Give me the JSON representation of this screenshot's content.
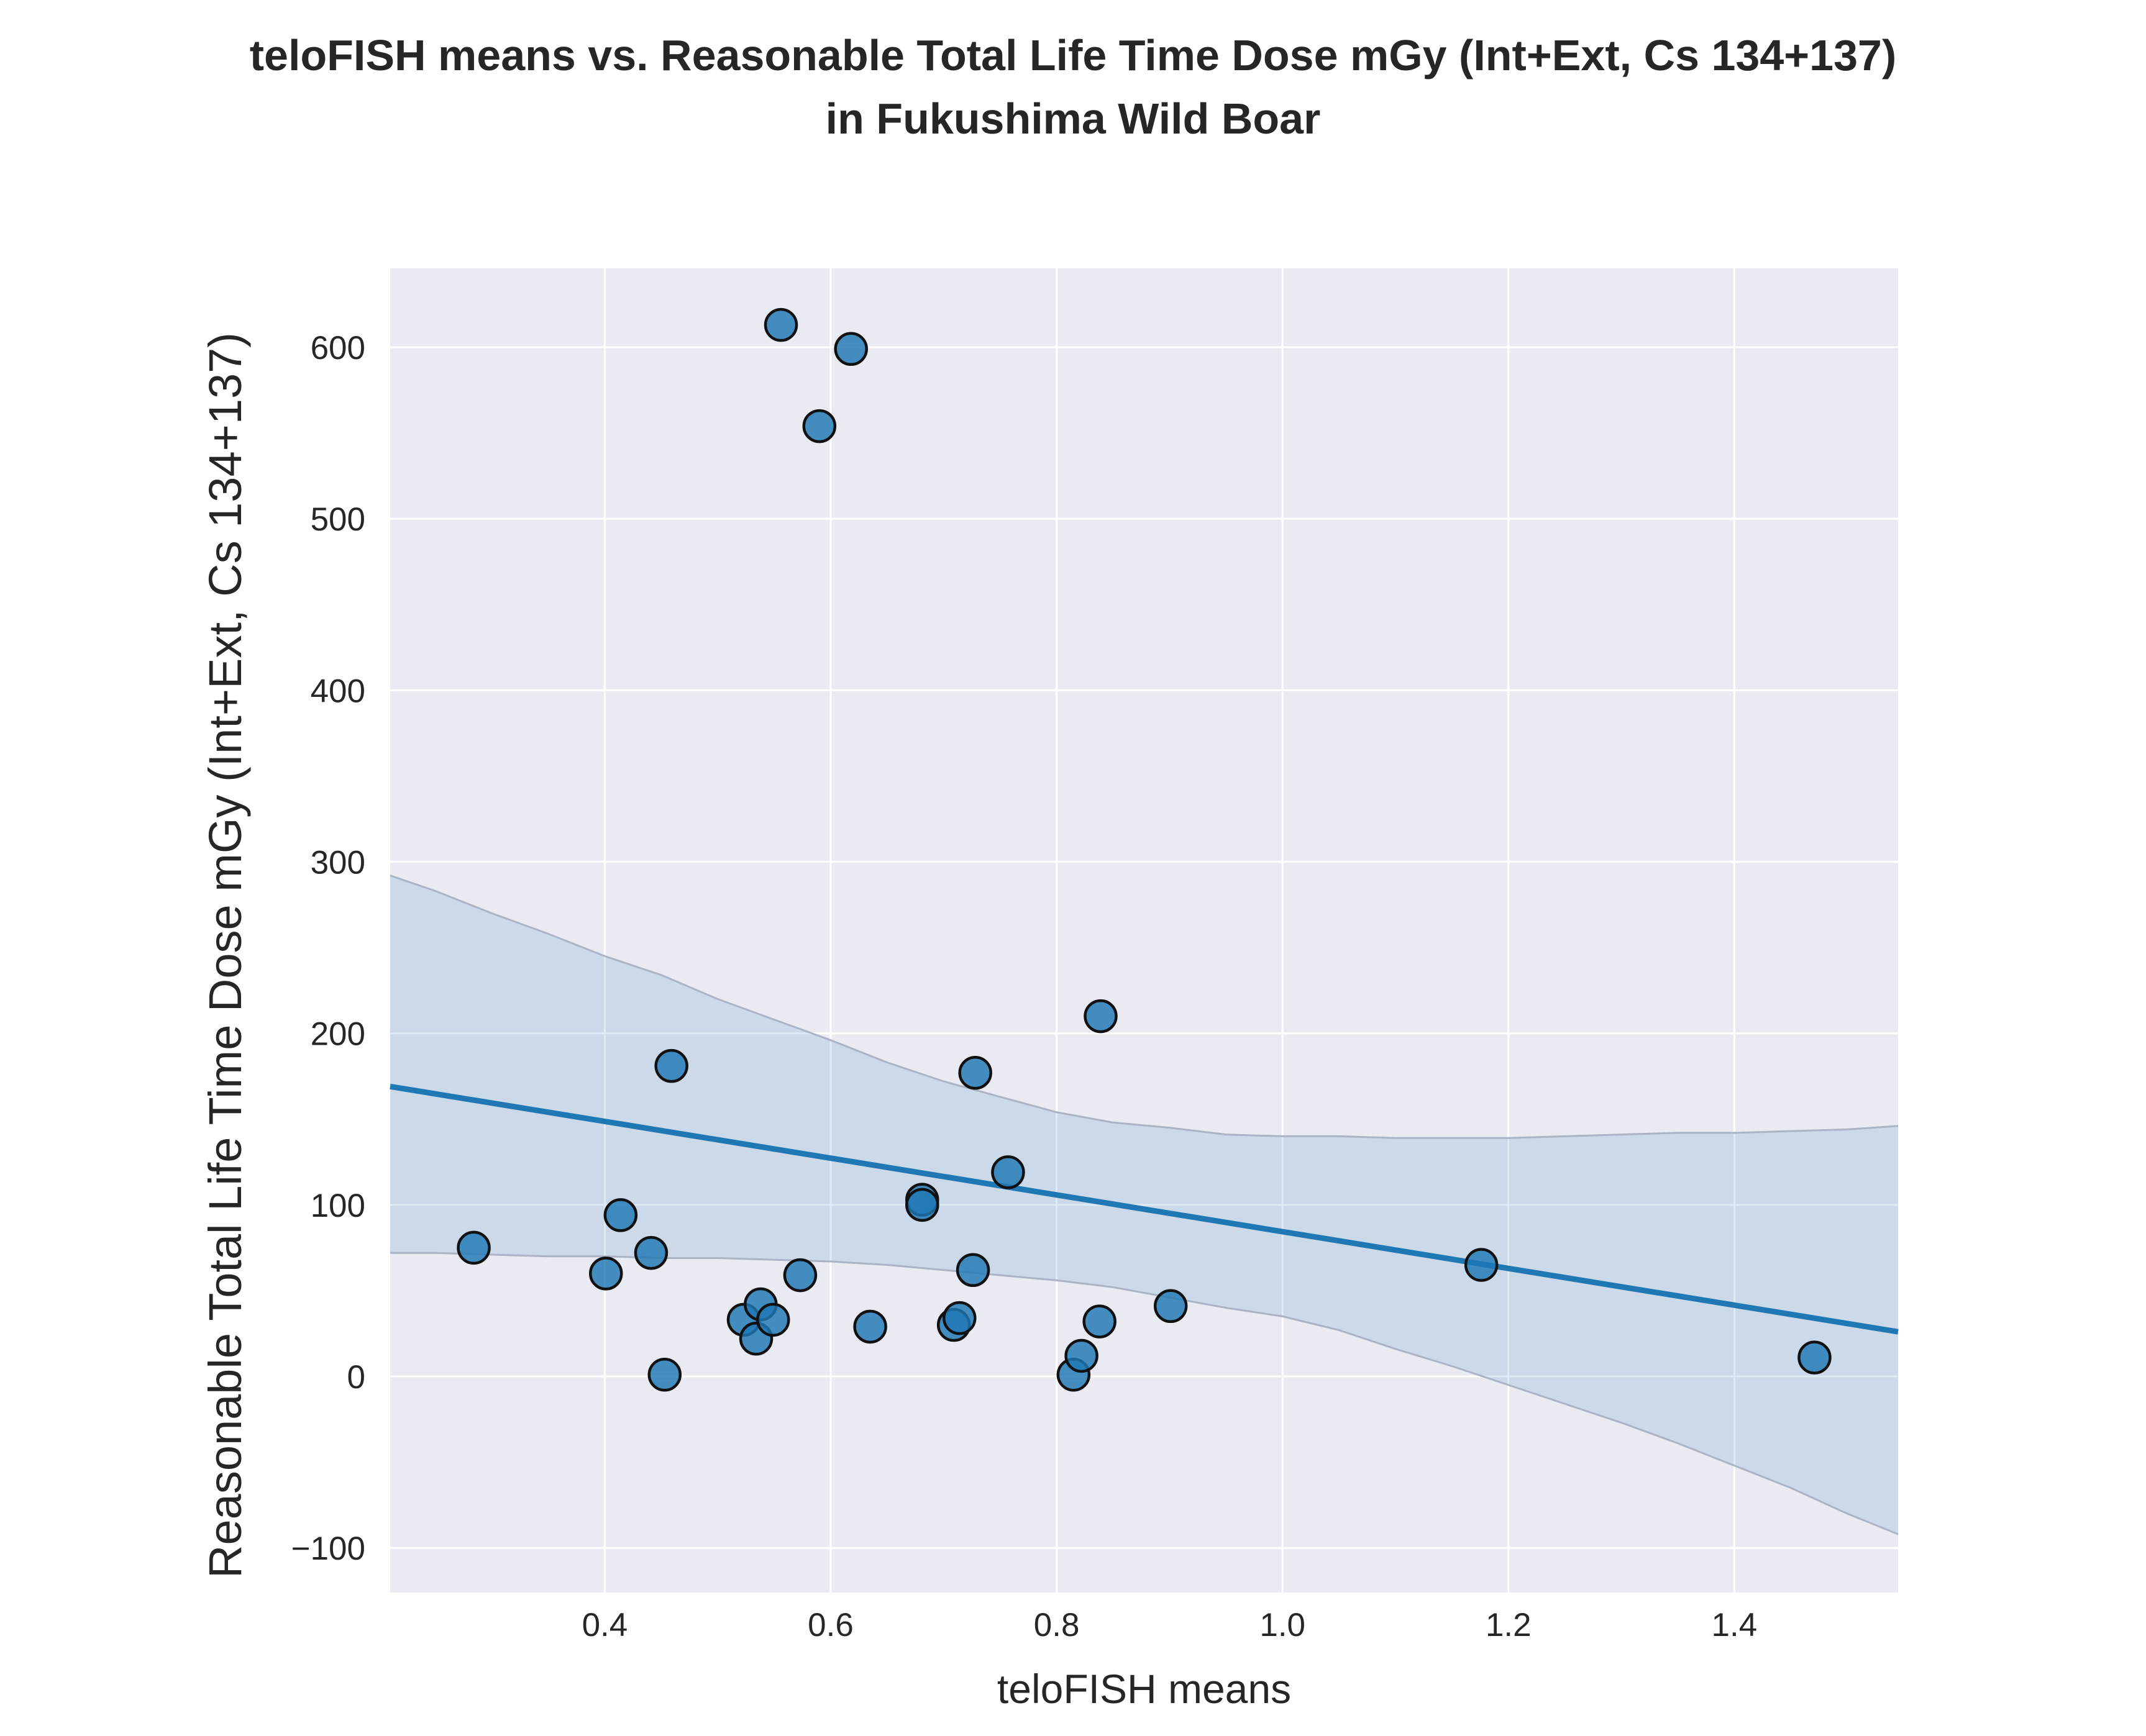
{
  "chart_data": {
    "type": "scatter",
    "title_lines": [
      "teloFISH means vs. Reasonable Total Life Time Dose mGy (Int+Ext, Cs 134+137)",
      "in Fukushima Wild Boar"
    ],
    "xlabel": "teloFISH means",
    "ylabel": "Reasonable Total Life Time Dose mGy (Int+Ext, Cs 134+137)",
    "xlim": [
      0.21,
      1.545
    ],
    "ylim": [
      -126,
      646
    ],
    "x_ticks": [
      0.4,
      0.6,
      0.8,
      1.0,
      1.2,
      1.4
    ],
    "x_tick_labels": [
      "0.4",
      "0.6",
      "0.8",
      "1.0",
      "1.2",
      "1.4"
    ],
    "y_ticks": [
      -100,
      0,
      100,
      200,
      300,
      400,
      500,
      600
    ],
    "y_tick_labels": [
      "−100",
      "0",
      "100",
      "200",
      "300",
      "400",
      "500",
      "600"
    ],
    "grid": true,
    "colors": {
      "background": "#eaeaf2",
      "grid": "#ffffff",
      "points": "#1f77b4",
      "line": "#1f77b4",
      "band": "#1f77b4"
    },
    "points": [
      {
        "x": 0.284,
        "y": 75
      },
      {
        "x": 0.401,
        "y": 60
      },
      {
        "x": 0.414,
        "y": 94
      },
      {
        "x": 0.441,
        "y": 72
      },
      {
        "x": 0.453,
        "y": 1
      },
      {
        "x": 0.459,
        "y": 181
      },
      {
        "x": 0.523,
        "y": 33
      },
      {
        "x": 0.534,
        "y": 22
      },
      {
        "x": 0.538,
        "y": 42
      },
      {
        "x": 0.549,
        "y": 33
      },
      {
        "x": 0.556,
        "y": 613
      },
      {
        "x": 0.573,
        "y": 59
      },
      {
        "x": 0.59,
        "y": 554
      },
      {
        "x": 0.618,
        "y": 599
      },
      {
        "x": 0.635,
        "y": 29
      },
      {
        "x": 0.681,
        "y": 103
      },
      {
        "x": 0.681,
        "y": 100
      },
      {
        "x": 0.709,
        "y": 30
      },
      {
        "x": 0.714,
        "y": 34
      },
      {
        "x": 0.726,
        "y": 62
      },
      {
        "x": 0.728,
        "y": 177
      },
      {
        "x": 0.757,
        "y": 119
      },
      {
        "x": 0.815,
        "y": 1
      },
      {
        "x": 0.822,
        "y": 12
      },
      {
        "x": 0.838,
        "y": 32
      },
      {
        "x": 0.839,
        "y": 210
      },
      {
        "x": 0.901,
        "y": 41
      },
      {
        "x": 1.176,
        "y": 65
      },
      {
        "x": 1.471,
        "y": 11
      }
    ],
    "regression_line": {
      "x": [
        0.21,
        1.545
      ],
      "y": [
        169,
        26
      ]
    },
    "confidence_band": {
      "x": [
        0.21,
        0.25,
        0.3,
        0.35,
        0.4,
        0.45,
        0.5,
        0.55,
        0.6,
        0.65,
        0.7,
        0.75,
        0.8,
        0.85,
        0.9,
        0.95,
        1.0,
        1.05,
        1.1,
        1.15,
        1.2,
        1.25,
        1.3,
        1.35,
        1.4,
        1.45,
        1.5,
        1.545
      ],
      "upper": [
        292,
        283,
        270,
        258,
        245,
        234,
        220,
        208,
        196,
        183,
        172,
        163,
        154,
        148,
        145,
        141,
        140,
        140,
        139,
        139,
        139,
        140,
        141,
        142,
        142,
        143,
        144,
        146
      ],
      "lower": [
        72,
        72,
        71,
        70,
        70,
        69,
        69,
        68,
        67,
        65,
        62,
        59,
        56,
        52,
        46,
        40,
        35,
        27,
        16,
        6,
        -5,
        -16,
        -27,
        -39,
        -52,
        -65,
        -80,
        -92
      ]
    }
  }
}
